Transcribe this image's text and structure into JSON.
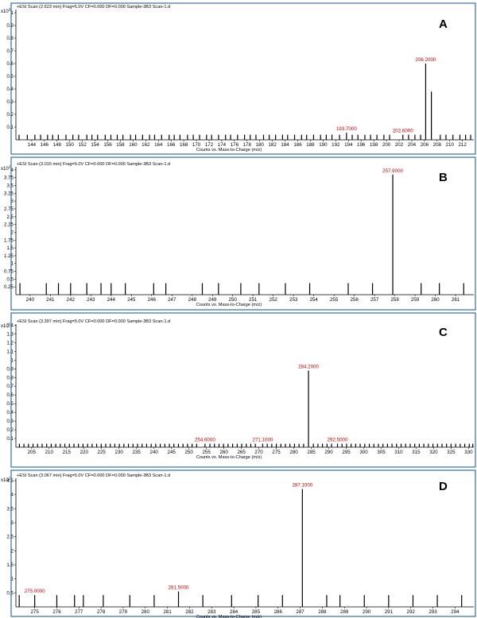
{
  "chart_data": [
    {
      "type": "bar",
      "panel_letter": "A",
      "header": "+ESI Scan (2.623 min) Frag=5.0V CF=0.000 DF=0.000 Sample-3B3 Scan-1.d",
      "exponent": "x10^3",
      "xlabel": "Counts vs. Mass-to-Charge (m/z)",
      "xlim": [
        141.5,
        213.8
      ],
      "ylim": [
        0,
        1.05
      ],
      "yticks": [
        0.1,
        0.2,
        0.3,
        0.4,
        0.5,
        0.6,
        0.7,
        0.8,
        0.9,
        1
      ],
      "xticks": [
        144,
        146,
        148,
        150,
        152,
        154,
        156,
        158,
        160,
        162,
        164,
        166,
        168,
        170,
        172,
        174,
        176,
        178,
        180,
        182,
        184,
        186,
        188,
        190,
        192,
        194,
        196,
        198,
        200,
        202,
        204,
        206,
        208,
        210,
        212
      ],
      "peaks": [
        {
          "x": 142.0,
          "y": 0.04
        },
        {
          "x": 143.3,
          "y": 0.04
        },
        {
          "x": 144.5,
          "y": 0.04
        },
        {
          "x": 145.4,
          "y": 0.04
        },
        {
          "x": 146.5,
          "y": 0.04
        },
        {
          "x": 147.3,
          "y": 0.04
        },
        {
          "x": 148.2,
          "y": 0.04
        },
        {
          "x": 149.4,
          "y": 0.04
        },
        {
          "x": 150.5,
          "y": 0.04
        },
        {
          "x": 151.4,
          "y": 0.04
        },
        {
          "x": 152.7,
          "y": 0.04
        },
        {
          "x": 153.5,
          "y": 0.04
        },
        {
          "x": 154.4,
          "y": 0.04
        },
        {
          "x": 155.6,
          "y": 0.04
        },
        {
          "x": 156.5,
          "y": 0.04
        },
        {
          "x": 157.5,
          "y": 0.04
        },
        {
          "x": 158.4,
          "y": 0.04
        },
        {
          "x": 159.6,
          "y": 0.04
        },
        {
          "x": 160.4,
          "y": 0.04
        },
        {
          "x": 161.5,
          "y": 0.04
        },
        {
          "x": 162.6,
          "y": 0.04
        },
        {
          "x": 163.4,
          "y": 0.04
        },
        {
          "x": 164.5,
          "y": 0.04
        },
        {
          "x": 165.7,
          "y": 0.04
        },
        {
          "x": 166.5,
          "y": 0.04
        },
        {
          "x": 167.4,
          "y": 0.04
        },
        {
          "x": 168.6,
          "y": 0.04
        },
        {
          "x": 169.5,
          "y": 0.04
        },
        {
          "x": 170.5,
          "y": 0.04
        },
        {
          "x": 171.6,
          "y": 0.04
        },
        {
          "x": 172.4,
          "y": 0.04
        },
        {
          "x": 173.5,
          "y": 0.04
        },
        {
          "x": 174.6,
          "y": 0.04
        },
        {
          "x": 175.4,
          "y": 0.04
        },
        {
          "x": 176.5,
          "y": 0.04
        },
        {
          "x": 177.6,
          "y": 0.04
        },
        {
          "x": 178.5,
          "y": 0.04
        },
        {
          "x": 179.4,
          "y": 0.04
        },
        {
          "x": 180.6,
          "y": 0.04
        },
        {
          "x": 181.5,
          "y": 0.04
        },
        {
          "x": 182.5,
          "y": 0.04
        },
        {
          "x": 183.6,
          "y": 0.04
        },
        {
          "x": 184.4,
          "y": 0.04
        },
        {
          "x": 185.5,
          "y": 0.04
        },
        {
          "x": 186.6,
          "y": 0.04
        },
        {
          "x": 187.4,
          "y": 0.04
        },
        {
          "x": 188.5,
          "y": 0.04
        },
        {
          "x": 189.6,
          "y": 0.04
        },
        {
          "x": 190.5,
          "y": 0.04
        },
        {
          "x": 191.4,
          "y": 0.04
        },
        {
          "x": 192.6,
          "y": 0.04
        },
        {
          "x": 193.7,
          "y": 0.055,
          "label": "193.7000"
        },
        {
          "x": 194.6,
          "y": 0.04
        },
        {
          "x": 195.5,
          "y": 0.04
        },
        {
          "x": 196.6,
          "y": 0.04
        },
        {
          "x": 197.5,
          "y": 0.04
        },
        {
          "x": 198.5,
          "y": 0.04
        },
        {
          "x": 199.6,
          "y": 0.04
        },
        {
          "x": 200.5,
          "y": 0.04
        },
        {
          "x": 202.6,
          "y": 0.04,
          "label": "202.6000"
        },
        {
          "x": 203.5,
          "y": 0.04
        },
        {
          "x": 204.5,
          "y": 0.04
        },
        {
          "x": 205.4,
          "y": 0.04
        },
        {
          "x": 206.2,
          "y": 0.6,
          "label": "206.2000"
        },
        {
          "x": 207.1,
          "y": 0.38
        },
        {
          "x": 208.5,
          "y": 0.04
        },
        {
          "x": 209.4,
          "y": 0.04
        },
        {
          "x": 210.5,
          "y": 0.04
        },
        {
          "x": 211.6,
          "y": 0.04
        },
        {
          "x": 212.5,
          "y": 0.04
        },
        {
          "x": 213.3,
          "y": 0.04
        }
      ]
    },
    {
      "type": "bar",
      "panel_letter": "B",
      "header": "+ESI Scan (3.015 min) Frag=5.0V CF=0.000 DF=0.000 Sample-3B3 Scan-1.d",
      "exponent": "x10^2",
      "xlabel": "Counts vs. Mass-to-Charge (m/z)",
      "xlim": [
        239.3,
        261.9
      ],
      "ylim": [
        0,
        4.2
      ],
      "yticks": [
        0.25,
        0.5,
        0.75,
        1,
        1.25,
        1.5,
        1.75,
        2,
        2.25,
        2.5,
        2.75,
        3,
        3.25,
        3.5,
        3.75,
        4
      ],
      "xticks": [
        240,
        241,
        242,
        243,
        244,
        245,
        246,
        247,
        248,
        249,
        250,
        251,
        252,
        253,
        254,
        255,
        256,
        257,
        258,
        259,
        260,
        261
      ],
      "peaks": [
        {
          "x": 239.5,
          "y": 0.37
        },
        {
          "x": 240.8,
          "y": 0.37
        },
        {
          "x": 241.4,
          "y": 0.37
        },
        {
          "x": 242.0,
          "y": 0.37
        },
        {
          "x": 242.8,
          "y": 0.37
        },
        {
          "x": 243.5,
          "y": 0.37
        },
        {
          "x": 244.0,
          "y": 0.37
        },
        {
          "x": 244.7,
          "y": 0.37
        },
        {
          "x": 246.1,
          "y": 0.37
        },
        {
          "x": 246.7,
          "y": 0.37
        },
        {
          "x": 248.5,
          "y": 0.37
        },
        {
          "x": 249.3,
          "y": 0.37
        },
        {
          "x": 250.4,
          "y": 0.37
        },
        {
          "x": 251.3,
          "y": 0.37
        },
        {
          "x": 252.6,
          "y": 0.37
        },
        {
          "x": 253.8,
          "y": 0.37
        },
        {
          "x": 255.7,
          "y": 0.37
        },
        {
          "x": 256.9,
          "y": 0.37
        },
        {
          "x": 257.9,
          "y": 3.85,
          "label": "257.9000"
        },
        {
          "x": 259.3,
          "y": 0.37
        },
        {
          "x": 260.2,
          "y": 0.37
        },
        {
          "x": 261.4,
          "y": 0.37
        }
      ]
    },
    {
      "type": "bar",
      "panel_letter": "C",
      "header": "+ESI Scan (3.397 min) Frag=5.0V CF=0.000 DF=0.000 Sample-3B3 Scan-1.d",
      "exponent": "x10^2",
      "xlabel": "Counts vs. Mass-to-Charge (m/z)",
      "xlim": [
        200.5,
        331.5
      ],
      "ylim": [
        0,
        1.45
      ],
      "yticks": [
        0.1,
        0.2,
        0.3,
        0.4,
        0.5,
        0.6,
        0.7,
        0.8,
        0.9,
        1,
        1.1,
        1.2,
        1.3,
        1.4
      ],
      "xticks": [
        205,
        210,
        215,
        220,
        225,
        230,
        235,
        240,
        245,
        250,
        255,
        260,
        265,
        270,
        275,
        280,
        285,
        290,
        295,
        300,
        305,
        310,
        315,
        320,
        325,
        330
      ],
      "peaks": [
        {
          "x": 201.5,
          "y": 0.04
        },
        {
          "x": 202.8,
          "y": 0.04
        },
        {
          "x": 204.1,
          "y": 0.04
        },
        {
          "x": 205.4,
          "y": 0.04
        },
        {
          "x": 206.7,
          "y": 0.04
        },
        {
          "x": 208.0,
          "y": 0.04
        },
        {
          "x": 209.3,
          "y": 0.04
        },
        {
          "x": 210.6,
          "y": 0.04
        },
        {
          "x": 211.9,
          "y": 0.04
        },
        {
          "x": 213.2,
          "y": 0.04
        },
        {
          "x": 214.5,
          "y": 0.04
        },
        {
          "x": 215.8,
          "y": 0.04
        },
        {
          "x": 217.1,
          "y": 0.04
        },
        {
          "x": 218.4,
          "y": 0.04
        },
        {
          "x": 219.7,
          "y": 0.04
        },
        {
          "x": 221.0,
          "y": 0.04
        },
        {
          "x": 222.3,
          "y": 0.04
        },
        {
          "x": 223.6,
          "y": 0.04
        },
        {
          "x": 224.9,
          "y": 0.04
        },
        {
          "x": 226.2,
          "y": 0.04
        },
        {
          "x": 227.5,
          "y": 0.04
        },
        {
          "x": 228.8,
          "y": 0.04
        },
        {
          "x": 230.1,
          "y": 0.04
        },
        {
          "x": 231.4,
          "y": 0.04
        },
        {
          "x": 232.7,
          "y": 0.04
        },
        {
          "x": 234.0,
          "y": 0.04
        },
        {
          "x": 235.3,
          "y": 0.04
        },
        {
          "x": 236.6,
          "y": 0.04
        },
        {
          "x": 237.9,
          "y": 0.04
        },
        {
          "x": 239.2,
          "y": 0.04
        },
        {
          "x": 240.5,
          "y": 0.04
        },
        {
          "x": 241.8,
          "y": 0.04
        },
        {
          "x": 243.1,
          "y": 0.04
        },
        {
          "x": 244.4,
          "y": 0.04
        },
        {
          "x": 245.7,
          "y": 0.04
        },
        {
          "x": 247.0,
          "y": 0.04
        },
        {
          "x": 248.3,
          "y": 0.04
        },
        {
          "x": 249.6,
          "y": 0.04
        },
        {
          "x": 250.9,
          "y": 0.04
        },
        {
          "x": 252.2,
          "y": 0.04
        },
        {
          "x": 254.6,
          "y": 0.04,
          "label": "254.6000"
        },
        {
          "x": 256.0,
          "y": 0.04
        },
        {
          "x": 257.3,
          "y": 0.04
        },
        {
          "x": 258.6,
          "y": 0.04
        },
        {
          "x": 259.9,
          "y": 0.04
        },
        {
          "x": 261.2,
          "y": 0.04
        },
        {
          "x": 262.5,
          "y": 0.04
        },
        {
          "x": 263.8,
          "y": 0.04
        },
        {
          "x": 265.1,
          "y": 0.04
        },
        {
          "x": 266.4,
          "y": 0.04
        },
        {
          "x": 267.7,
          "y": 0.04
        },
        {
          "x": 269.0,
          "y": 0.04
        },
        {
          "x": 271.1,
          "y": 0.04,
          "label": "271.1000"
        },
        {
          "x": 272.4,
          "y": 0.04
        },
        {
          "x": 273.7,
          "y": 0.04
        },
        {
          "x": 275.0,
          "y": 0.04
        },
        {
          "x": 276.3,
          "y": 0.04
        },
        {
          "x": 277.6,
          "y": 0.04
        },
        {
          "x": 278.9,
          "y": 0.04
        },
        {
          "x": 280.2,
          "y": 0.04
        },
        {
          "x": 281.5,
          "y": 0.04
        },
        {
          "x": 282.8,
          "y": 0.04
        },
        {
          "x": 284.2,
          "y": 0.88,
          "label": "284.2000"
        },
        {
          "x": 285.6,
          "y": 0.04
        },
        {
          "x": 286.9,
          "y": 0.04
        },
        {
          "x": 288.2,
          "y": 0.04
        },
        {
          "x": 289.5,
          "y": 0.04
        },
        {
          "x": 290.8,
          "y": 0.04
        },
        {
          "x": 292.5,
          "y": 0.04,
          "label": "292.5000"
        },
        {
          "x": 293.8,
          "y": 0.04
        },
        {
          "x": 295.1,
          "y": 0.04
        },
        {
          "x": 296.4,
          "y": 0.04
        },
        {
          "x": 297.7,
          "y": 0.04
        },
        {
          "x": 299.0,
          "y": 0.04
        },
        {
          "x": 300.3,
          "y": 0.04
        },
        {
          "x": 301.6,
          "y": 0.04
        },
        {
          "x": 302.9,
          "y": 0.04
        },
        {
          "x": 304.2,
          "y": 0.04
        },
        {
          "x": 305.5,
          "y": 0.04
        },
        {
          "x": 306.8,
          "y": 0.04
        },
        {
          "x": 308.1,
          "y": 0.04
        },
        {
          "x": 309.4,
          "y": 0.04
        },
        {
          "x": 310.7,
          "y": 0.04
        },
        {
          "x": 312.0,
          "y": 0.04
        },
        {
          "x": 313.3,
          "y": 0.04
        },
        {
          "x": 314.6,
          "y": 0.04
        },
        {
          "x": 315.9,
          "y": 0.04
        },
        {
          "x": 317.2,
          "y": 0.04
        },
        {
          "x": 318.5,
          "y": 0.04
        },
        {
          "x": 319.8,
          "y": 0.04
        },
        {
          "x": 321.1,
          "y": 0.04
        },
        {
          "x": 322.4,
          "y": 0.04
        },
        {
          "x": 323.7,
          "y": 0.04
        },
        {
          "x": 325.0,
          "y": 0.04
        },
        {
          "x": 326.3,
          "y": 0.04
        },
        {
          "x": 327.6,
          "y": 0.04
        },
        {
          "x": 328.9,
          "y": 0.04
        },
        {
          "x": 330.2,
          "y": 0.04
        },
        {
          "x": 331.2,
          "y": 0.04
        }
      ]
    },
    {
      "type": "bar",
      "panel_letter": "D",
      "header": "+ESI Scan (3.067 min) Frag=5.0V CF=0.000 DF=0.000 Sample-3B3 Scan-1.d",
      "exponent": "x10^2",
      "xlabel": "Counts vs. Mass-to-Charge (m/z)",
      "xlim": [
        274.15,
        294.85
      ],
      "ylim": [
        0,
        4.7
      ],
      "yticks": [
        0.5,
        1,
        1.5,
        2,
        2.5,
        3,
        3.5,
        4,
        4.5
      ],
      "xticks": [
        275,
        276,
        277,
        278,
        279,
        280,
        281,
        282,
        283,
        284,
        285,
        286,
        287,
        288,
        289,
        290,
        291,
        292,
        293,
        294
      ],
      "peaks": [
        {
          "x": 274.3,
          "y": 0.42
        },
        {
          "x": 275.0,
          "y": 0.42,
          "label": "275.0000"
        },
        {
          "x": 276.0,
          "y": 0.42
        },
        {
          "x": 276.8,
          "y": 0.42
        },
        {
          "x": 277.2,
          "y": 0.42
        },
        {
          "x": 278.1,
          "y": 0.42
        },
        {
          "x": 279.3,
          "y": 0.42
        },
        {
          "x": 280.4,
          "y": 0.42
        },
        {
          "x": 281.5,
          "y": 0.55,
          "label": "281.5000"
        },
        {
          "x": 282.6,
          "y": 0.42
        },
        {
          "x": 283.9,
          "y": 0.42
        },
        {
          "x": 285.1,
          "y": 0.42
        },
        {
          "x": 286.2,
          "y": 0.42
        },
        {
          "x": 287.1,
          "y": 4.2,
          "label": "287.1000"
        },
        {
          "x": 288.2,
          "y": 0.42
        },
        {
          "x": 288.8,
          "y": 0.42
        },
        {
          "x": 289.9,
          "y": 0.42
        },
        {
          "x": 291.0,
          "y": 0.42
        },
        {
          "x": 292.1,
          "y": 0.42
        },
        {
          "x": 293.2,
          "y": 0.42
        },
        {
          "x": 294.3,
          "y": 0.42
        }
      ]
    }
  ]
}
